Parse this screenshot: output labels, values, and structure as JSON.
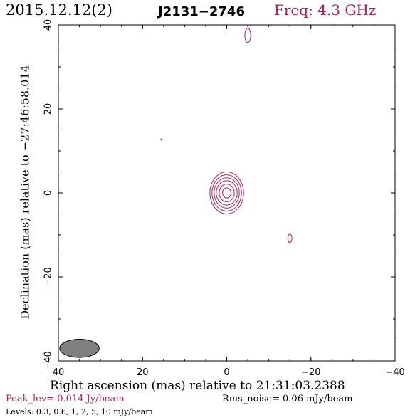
{
  "header": {
    "date": "2015.12.12(2)",
    "source": "J2131−2746",
    "frequency": "Freq: 4.3 GHz"
  },
  "chart_data": {
    "type": "contour",
    "xlabel": "Right ascension (mas) relative to 21:31:03.2388",
    "ylabel": "Declination (mas) relative to −27:46:58.014",
    "xlim": [
      40,
      -40
    ],
    "ylim": [
      -40,
      40
    ],
    "x_ticks": [
      40,
      20,
      0,
      -20,
      -40
    ],
    "y_ticks": [
      -40,
      -20,
      0,
      20,
      40
    ],
    "x_tick_labels": [
      "40",
      "20",
      "0",
      "−20",
      "−40"
    ],
    "y_tick_labels": [
      "−40",
      "−20",
      "0",
      "20",
      "40"
    ],
    "contour_color": "#a8244e",
    "features": [
      {
        "name": "core",
        "x": 0,
        "y": 0,
        "rx": [
          4.0,
          3.5,
          3.0,
          2.5,
          1.8,
          1.0
        ],
        "ry": [
          5.0,
          4.3,
          3.6,
          2.9,
          2.1,
          1.2
        ]
      },
      {
        "name": "north-blob",
        "x": -5,
        "y": 37.5,
        "rx": [
          0.7
        ],
        "ry": [
          1.7
        ]
      },
      {
        "name": "east-blob",
        "x": -15,
        "y": -10.8,
        "rx": [
          0.5
        ],
        "ry": [
          1.0
        ]
      },
      {
        "name": "dot",
        "x": 15.5,
        "y": 12.7,
        "rx": [
          0.15
        ],
        "ry": [
          0.15
        ]
      }
    ],
    "beam": {
      "x": 35,
      "y": -37,
      "rx": 0.85,
      "ry": 2.0,
      "color": "#808080"
    }
  },
  "footer": {
    "peak": "Peak_lev=  0.014 Jy/beam",
    "rms": "Rms_noise= 0.06 mJy/beam",
    "levels": "Levels: 0.3, 0.6,    1,    2,    5,   10 mJy/beam"
  }
}
